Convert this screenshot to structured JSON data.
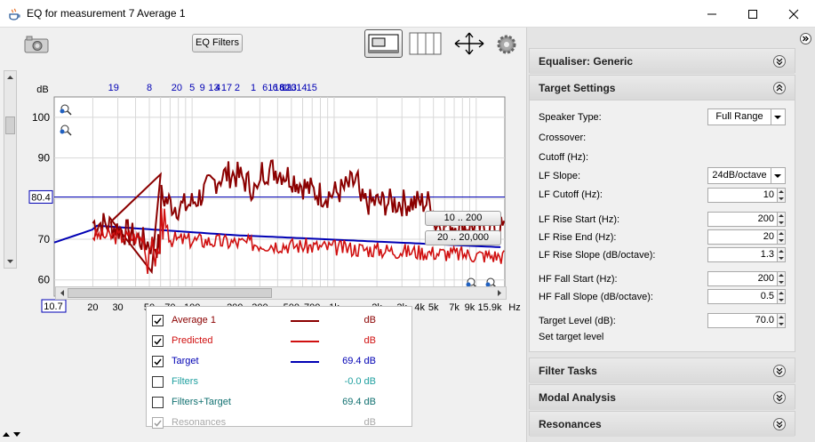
{
  "window": {
    "title": "EQ for measurement 7 Average 1"
  },
  "toolbar": {
    "eq_filters_label": "EQ Filters"
  },
  "graph": {
    "y_unit": "dB",
    "y_ticks": [
      "100",
      "90",
      "70",
      "60"
    ],
    "target_marker": "80.4",
    "min_freq_marker": "10.7",
    "x_ticks": [
      "20",
      "30",
      "50",
      "70",
      "100",
      "200",
      "300",
      "500",
      "700",
      "1k",
      "2k",
      "3k",
      "4k",
      "5k",
      "7k",
      "9k",
      "15.9k",
      "Hz"
    ],
    "top_filter_numbers": [
      "19",
      "8",
      "20",
      "5",
      "9",
      "13",
      "4",
      "17",
      "2",
      "1",
      "6",
      "1",
      "6",
      "18",
      "6",
      "12",
      "11",
      "10",
      "3",
      "14",
      "15"
    ],
    "range_buttons": [
      "10 .. 200",
      "20 .. 20,000"
    ]
  },
  "legend": {
    "rows": [
      {
        "name": "Average 1",
        "value": "dB",
        "checked": true,
        "color": "#8b0000"
      },
      {
        "name": "Predicted",
        "value": "dB",
        "checked": true,
        "color": "#d01010"
      },
      {
        "name": "Target",
        "value": "69.4 dB",
        "checked": true,
        "color": "#0000b4"
      },
      {
        "name": "Filters",
        "value": "-0.0 dB",
        "checked": false,
        "color": "#20a0a0"
      },
      {
        "name": "Filters+Target",
        "value": "69.4 dB",
        "checked": false,
        "color": "#107070"
      },
      {
        "name": "Resonances",
        "value": "dB",
        "checked": true,
        "color": "#a8a8a8"
      }
    ]
  },
  "panels": {
    "equaliser": "Equaliser: Generic",
    "target": "Target Settings",
    "filter_tasks": "Filter Tasks",
    "modal": "Modal Analysis",
    "resonances": "Resonances"
  },
  "target_settings": {
    "speaker_type_label": "Speaker Type:",
    "speaker_type": "Full Range",
    "crossover_label": "Crossover:",
    "cutoff_label": "Cutoff (Hz):",
    "lf_slope_label": "LF Slope:",
    "lf_slope": "24dB/octave",
    "lf_cutoff_label": "LF Cutoff (Hz):",
    "lf_cutoff": "10",
    "lf_rise_start_label": "LF Rise Start (Hz):",
    "lf_rise_start": "200",
    "lf_rise_end_label": "LF Rise End (Hz):",
    "lf_rise_end": "20",
    "lf_rise_slope_label": "LF Rise Slope (dB/octave):",
    "lf_rise_slope": "1.3",
    "hf_fall_start_label": "HF Fall Start (Hz):",
    "hf_fall_start": "200",
    "hf_fall_slope_label": "HF Fall Slope (dB/octave):",
    "hf_fall_slope": "0.5",
    "target_level_label": "Target Level (dB):",
    "target_level": "70.0",
    "set_target_level": "Set target level"
  },
  "colors": {
    "measurement": "#8b0000",
    "predicted": "#d01010",
    "target": "#0000b4"
  }
}
